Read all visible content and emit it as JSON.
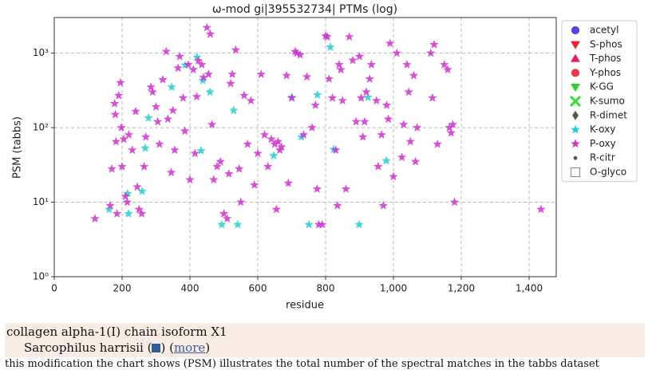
{
  "chart_data": {
    "type": "scatter",
    "title": "ω-mod gi|395532734| PTMs (log)",
    "xlabel": "residue",
    "ylabel": "PSM (tabbs)",
    "xlim": [
      0,
      1480
    ],
    "ylim": [
      1,
      3000
    ],
    "log_y": true,
    "grid": true,
    "legend": "outside-right",
    "xticks": [
      0,
      200,
      400,
      600,
      800,
      {
        "value": 1000,
        "label": "1,000"
      },
      {
        "value": 1200,
        "label": "1,200"
      },
      {
        "value": 1400,
        "label": "1,400"
      }
    ],
    "yticks": [
      {
        "value": 1,
        "label": "10⁰"
      },
      {
        "value": 10,
        "label": "10¹"
      },
      {
        "value": 100,
        "label": "10²"
      },
      {
        "value": 1000,
        "label": "10³"
      }
    ],
    "series": [
      {
        "name": "acetyl",
        "color": "#5b3fe0",
        "marker": "circle",
        "x": [],
        "values": []
      },
      {
        "name": "S-phos",
        "color": "#e8213a",
        "marker": "triangle-down",
        "x": [],
        "values": []
      },
      {
        "name": "T-phos",
        "color": "#e8215a",
        "marker": "triangle-up",
        "x": [],
        "values": []
      },
      {
        "name": "Y-phos",
        "color": "#e83a4a",
        "marker": "circle",
        "x": [],
        "values": []
      },
      {
        "name": "K-GG",
        "color": "#33cc33",
        "marker": "triangle-down",
        "x": [],
        "values": []
      },
      {
        "name": "K-sumo",
        "color": "#33dd33",
        "marker": "x",
        "x": [],
        "values": []
      },
      {
        "name": "R-dimet",
        "color": "#5a5a3a",
        "marker": "diamond",
        "x": [],
        "values": []
      },
      {
        "name": "K-oxy",
        "color": "#22cccc",
        "marker": "star",
        "x": [
          162,
          216,
          219,
          259,
          268,
          278,
          346,
          386,
          421,
          433,
          459,
          438,
          529,
          494,
          541,
          647,
          701,
          729,
          751,
          776,
          814,
          824,
          899,
          925,
          979
        ],
        "values": [
          8,
          13,
          7,
          14,
          53,
          135,
          350,
          690,
          880,
          49,
          300,
          430,
          170,
          5,
          5,
          42,
          255,
          75,
          5,
          275,
          1200,
          51,
          5,
          255,
          36
        ]
      },
      {
        "name": "P-oxy",
        "color": "#cc33cc",
        "marker": "star",
        "x": [
          120,
          165,
          170,
          178,
          180,
          182,
          185,
          190,
          195,
          198,
          200,
          205,
          210,
          215,
          220,
          230,
          240,
          245,
          250,
          258,
          265,
          270,
          285,
          290,
          300,
          305,
          310,
          320,
          330,
          335,
          345,
          350,
          355,
          365,
          370,
          380,
          385,
          395,
          400,
          410,
          415,
          420,
          425,
          435,
          440,
          450,
          460,
          455,
          465,
          470,
          480,
          490,
          500,
          510,
          515,
          520,
          525,
          535,
          545,
          550,
          560,
          570,
          580,
          590,
          600,
          610,
          620,
          630,
          640,
          650,
          655,
          660,
          665,
          670,
          685,
          690,
          700,
          710,
          715,
          725,
          735,
          745,
          760,
          770,
          775,
          780,
          790,
          800,
          805,
          810,
          820,
          830,
          835,
          840,
          845,
          850,
          860,
          870,
          880,
          890,
          900,
          905,
          910,
          915,
          920,
          930,
          935,
          950,
          955,
          965,
          970,
          980,
          985,
          990,
          1000,
          1010,
          1025,
          1030,
          1040,
          1045,
          1050,
          1060,
          1065,
          1070,
          1110,
          1115,
          1120,
          1130,
          1150,
          1160,
          1165,
          1170,
          1175,
          1180,
          1435
        ],
        "values": [
          6,
          9,
          28,
          210,
          150,
          65,
          7,
          270,
          400,
          100,
          30,
          70,
          12,
          10,
          80,
          50,
          165,
          16,
          8,
          7,
          30,
          75,
          350,
          300,
          190,
          120,
          60,
          440,
          1050,
          130,
          25,
          170,
          50,
          630,
          900,
          250,
          90,
          700,
          20,
          600,
          45,
          260,
          790,
          700,
          470,
          2200,
          1800,
          520,
          110,
          20,
          30,
          35,
          7,
          6,
          24,
          390,
          520,
          1100,
          28,
          10,
          270,
          60,
          230,
          17,
          45,
          520,
          80,
          30,
          70,
          60,
          8,
          65,
          50,
          55,
          500,
          18,
          250,
          1050,
          1000,
          950,
          80,
          480,
          100,
          200,
          15,
          5,
          5,
          1700,
          1650,
          450,
          250,
          50,
          9,
          700,
          600,
          230,
          15,
          1650,
          800,
          120,
          900,
          250,
          75,
          120,
          300,
          450,
          700,
          230,
          30,
          80,
          9,
          200,
          130,
          1350,
          22,
          1000,
          40,
          110,
          700,
          300,
          65,
          500,
          35,
          100,
          1000,
          250,
          1300,
          60,
          700,
          600,
          100,
          85,
          110,
          10,
          8
        ]
      },
      {
        "name": "R-citr",
        "color": "#555555",
        "marker": "point",
        "x": [],
        "values": []
      },
      {
        "name": "O-glyco",
        "color": "#ffffff",
        "marker": "square",
        "x": [],
        "values": []
      }
    ]
  },
  "info": {
    "protein": "collagen alpha-1(I) chain isoform X1",
    "organism": "Sarcophilus harrisii (",
    "mid": ") (",
    "link": "more",
    "end": ")",
    "note": "this modification the chart shows (PSM) illustrates the total number of the spectral matches in the tabbs dataset"
  }
}
